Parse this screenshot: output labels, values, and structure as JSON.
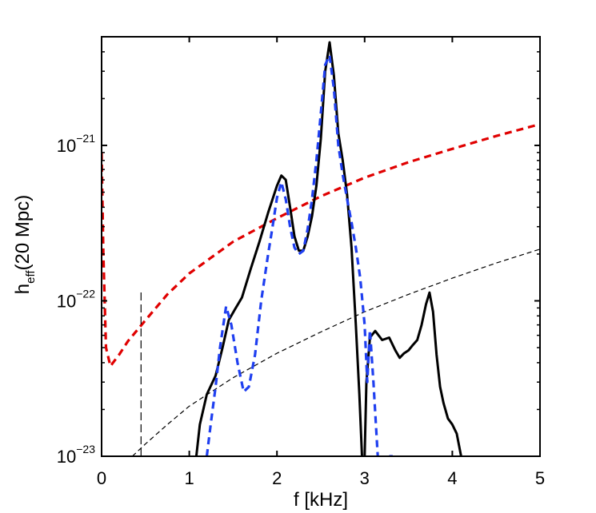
{
  "chart_data": {
    "type": "line",
    "title": "",
    "xlabel": "f [kHz]",
    "ylabel": {
      "main": "h",
      "subscript": "eff",
      "suffix": "(20 Mpc)"
    },
    "x_scale": "linear",
    "y_scale": "log",
    "xlim": [
      0,
      5
    ],
    "ylim": [
      1e-23,
      5e-21
    ],
    "grid": false,
    "legend": "none",
    "x_ticks": [
      {
        "value": 0,
        "label": "0"
      },
      {
        "value": 1,
        "label": "1"
      },
      {
        "value": 2,
        "label": "2"
      },
      {
        "value": 3,
        "label": "3"
      },
      {
        "value": 4,
        "label": "4"
      },
      {
        "value": 5,
        "label": "5"
      }
    ],
    "y_ticks": [
      {
        "value": 1e-23,
        "base": "10",
        "exp": "−23"
      },
      {
        "value": 1e-22,
        "base": "10",
        "exp": "−22"
      },
      {
        "value": 1e-21,
        "base": "10",
        "exp": "−21"
      }
    ],
    "series": [
      {
        "color": "#000000",
        "style": "solid",
        "segments": [
          [
            [
              1.08,
              1e-23
            ],
            [
              1.12,
              1.6e-23
            ],
            [
              1.2,
              2.5e-23
            ],
            [
              1.3,
              3.3e-23
            ],
            [
              1.38,
              5e-23
            ],
            [
              1.45,
              7.5e-23
            ],
            [
              1.52,
              8.8e-23
            ],
            [
              1.6,
              1.05e-22
            ],
            [
              1.7,
              1.6e-22
            ],
            [
              1.8,
              2.4e-22
            ],
            [
              1.9,
              3.7e-22
            ],
            [
              2.0,
              5.5e-22
            ],
            [
              2.05,
              6.4e-22
            ],
            [
              2.1,
              6e-22
            ],
            [
              2.15,
              4e-22
            ],
            [
              2.2,
              2.6e-22
            ],
            [
              2.25,
              2.1e-22
            ],
            [
              2.3,
              2.1e-22
            ],
            [
              2.35,
              2.6e-22
            ],
            [
              2.4,
              3.5e-22
            ],
            [
              2.45,
              5.5e-22
            ],
            [
              2.5,
              1.1e-21
            ],
            [
              2.55,
              3e-21
            ],
            [
              2.6,
              4.6e-21
            ],
            [
              2.65,
              2.8e-21
            ],
            [
              2.7,
              1.2e-21
            ],
            [
              2.75,
              8e-22
            ],
            [
              2.8,
              4.8e-22
            ],
            [
              2.85,
              2.2e-22
            ],
            [
              2.9,
              7e-23
            ],
            [
              2.94,
              2.5e-23
            ],
            [
              2.97,
              1e-23
            ]
          ],
          [
            [
              3.0,
              1e-23
            ],
            [
              3.02,
              3e-23
            ],
            [
              3.06,
              5.8e-23
            ],
            [
              3.12,
              6.4e-23
            ],
            [
              3.2,
              5.6e-23
            ],
            [
              3.28,
              5.8e-23
            ],
            [
              3.35,
              4.8e-23
            ],
            [
              3.4,
              4.3e-23
            ],
            [
              3.45,
              4.6e-23
            ],
            [
              3.5,
              4.8e-23
            ],
            [
              3.55,
              5.2e-23
            ],
            [
              3.6,
              5.6e-23
            ],
            [
              3.65,
              7e-23
            ],
            [
              3.7,
              9.5e-23
            ],
            [
              3.74,
              1.13e-22
            ],
            [
              3.78,
              8.5e-23
            ],
            [
              3.82,
              4.5e-23
            ],
            [
              3.86,
              2.8e-23
            ],
            [
              3.9,
              2.2e-23
            ],
            [
              3.95,
              1.75e-23
            ],
            [
              4.0,
              1.6e-23
            ],
            [
              4.05,
              1.4e-23
            ],
            [
              4.1,
              1e-23
            ]
          ]
        ]
      },
      {
        "color": "#1f3ff0",
        "style": "dashed",
        "segments": [
          [
            [
              1.2,
              1e-23
            ],
            [
              1.25,
              1.7e-23
            ],
            [
              1.3,
              2.8e-23
            ],
            [
              1.35,
              5e-23
            ],
            [
              1.42,
              9.2e-23
            ],
            [
              1.48,
              7e-23
            ],
            [
              1.55,
              4e-23
            ],
            [
              1.62,
              2.6e-23
            ],
            [
              1.68,
              2.8e-23
            ],
            [
              1.75,
              4.5e-23
            ],
            [
              1.82,
              1e-22
            ],
            [
              1.9,
              2e-22
            ],
            [
              1.95,
              3e-22
            ],
            [
              2.0,
              4.6e-22
            ],
            [
              2.05,
              5.8e-22
            ],
            [
              2.1,
              4.5e-22
            ],
            [
              2.15,
              3e-22
            ],
            [
              2.2,
              2.2e-22
            ],
            [
              2.25,
              2e-22
            ],
            [
              2.3,
              2.1e-22
            ],
            [
              2.35,
              2.9e-22
            ],
            [
              2.4,
              4.5e-22
            ],
            [
              2.45,
              8e-22
            ],
            [
              2.5,
              1.6e-21
            ],
            [
              2.55,
              3.3e-21
            ],
            [
              2.6,
              3.8e-21
            ],
            [
              2.65,
              2.3e-21
            ],
            [
              2.7,
              1e-21
            ],
            [
              2.75,
              6.5e-22
            ],
            [
              2.8,
              4.5e-22
            ],
            [
              2.85,
              3.2e-22
            ],
            [
              2.9,
              2.2e-22
            ],
            [
              2.95,
              1.4e-22
            ],
            [
              3.0,
              7e-23
            ],
            [
              3.03,
              3e-23
            ],
            [
              3.06,
              6.5e-23
            ],
            [
              3.1,
              3e-23
            ],
            [
              3.15,
              1e-23
            ]
          ],
          [
            [
              3.28,
              1e-23
            ],
            [
              3.32,
              1e-23
            ]
          ]
        ]
      },
      {
        "color": "#e00000",
        "style": "dashed",
        "segments": [
          [
            [
              0.0,
              9e-22
            ],
            [
              0.02,
              2e-22
            ],
            [
              0.05,
              5e-23
            ],
            [
              0.1,
              3.8e-23
            ],
            [
              0.2,
              4.5e-23
            ],
            [
              0.3,
              5.5e-23
            ],
            [
              0.5,
              7.5e-23
            ],
            [
              0.75,
              1.1e-22
            ],
            [
              1.0,
              1.5e-22
            ],
            [
              1.5,
              2.4e-22
            ],
            [
              2.0,
              3.4e-22
            ],
            [
              2.5,
              4.7e-22
            ],
            [
              3.0,
              6.2e-22
            ],
            [
              3.5,
              7.8e-22
            ],
            [
              4.0,
              9.5e-22
            ],
            [
              4.5,
              1.15e-21
            ],
            [
              5.0,
              1.37e-21
            ]
          ]
        ]
      },
      {
        "color": "#000000",
        "style": "dashed-thin",
        "segments": [
          [
            [
              0.35,
              1e-23
            ],
            [
              0.5,
              1.2e-23
            ],
            [
              0.75,
              1.6e-23
            ],
            [
              1.0,
              2.1e-23
            ],
            [
              1.5,
              3.2e-23
            ],
            [
              2.0,
              4.6e-23
            ],
            [
              2.5,
              6.3e-23
            ],
            [
              3.0,
              8.5e-23
            ],
            [
              3.5,
              1.1e-22
            ],
            [
              4.0,
              1.4e-22
            ],
            [
              4.5,
              1.75e-22
            ],
            [
              5.0,
              2.15e-22
            ]
          ]
        ]
      },
      {
        "color": "#000000",
        "style": "dashed-vertical",
        "segments": [
          [
            [
              0.45,
              1e-23
            ],
            [
              0.45,
              1.2e-22
            ]
          ]
        ]
      }
    ]
  }
}
